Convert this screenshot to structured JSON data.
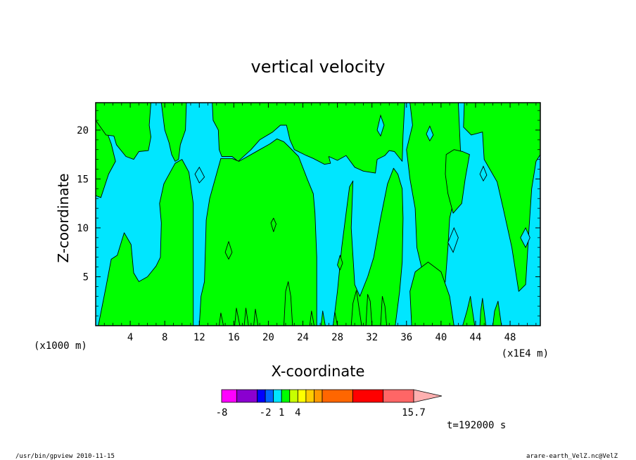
{
  "chart_data": {
    "type": "heatmap",
    "title": "vertical velocity",
    "xlabel": "X-coordinate",
    "ylabel": "Z-coordinate",
    "x_unit": "(x1E4 m)",
    "y_unit": "(x1000 m)",
    "xlim": [
      0,
      51.5
    ],
    "ylim": [
      0,
      22.8
    ],
    "x_ticks": [
      4,
      8,
      12,
      16,
      20,
      24,
      28,
      32,
      36,
      40,
      44,
      48
    ],
    "y_ticks": [
      5,
      10,
      15,
      20
    ],
    "background_color": "#00e6ff",
    "region_color": "#00ff00",
    "positive_regions": [
      {
        "id": "r1",
        "points": [
          [
            0,
            22.8
          ],
          [
            0,
            13.3
          ],
          [
            0.6,
            13.1
          ],
          [
            1.5,
            15.5
          ],
          [
            2.3,
            16.8
          ],
          [
            1.8,
            18.6
          ],
          [
            1.0,
            20.5
          ],
          [
            0.8,
            22.8
          ]
        ]
      },
      {
        "id": "r2",
        "points": [
          [
            0,
            22.8
          ],
          [
            0,
            21.0
          ],
          [
            1.2,
            19.5
          ],
          [
            2.1,
            19.4
          ],
          [
            2.4,
            18.5
          ],
          [
            3.5,
            17.3
          ],
          [
            4.4,
            17.0
          ],
          [
            5.0,
            17.8
          ],
          [
            6.1,
            17.9
          ],
          [
            6.4,
            19.3
          ],
          [
            6.2,
            20.5
          ],
          [
            6.4,
            22.8
          ]
        ]
      },
      {
        "id": "r3",
        "points": [
          [
            7.6,
            22.8
          ],
          [
            8.0,
            20.0
          ],
          [
            8.5,
            18.7
          ],
          [
            8.8,
            17.5
          ],
          [
            9.2,
            16.8
          ],
          [
            9.6,
            17.0
          ],
          [
            9.8,
            18.5
          ],
          [
            10.4,
            20.0
          ],
          [
            10.5,
            22.8
          ]
        ]
      },
      {
        "id": "r4",
        "points": [
          [
            13.5,
            22.8
          ],
          [
            13.6,
            21.0
          ],
          [
            14.2,
            20.0
          ],
          [
            14.3,
            18.0
          ],
          [
            14.6,
            17.3
          ],
          [
            15.8,
            17.3
          ],
          [
            16.5,
            16.8
          ],
          [
            18.0,
            18.0
          ],
          [
            19.0,
            19.0
          ],
          [
            20.5,
            19.8
          ],
          [
            21.4,
            20.5
          ],
          [
            22.1,
            20.5
          ],
          [
            22.5,
            19.0
          ],
          [
            23.0,
            18.0
          ],
          [
            24.4,
            17.4
          ],
          [
            25.2,
            17.1
          ],
          [
            26.5,
            16.5
          ],
          [
            27.2,
            16.6
          ],
          [
            27.0,
            17.3
          ],
          [
            28.0,
            16.9
          ],
          [
            29.0,
            17.4
          ],
          [
            30.0,
            16.2
          ],
          [
            31.0,
            15.8
          ],
          [
            32.4,
            15.6
          ],
          [
            32.6,
            17.0
          ],
          [
            33.5,
            17.4
          ],
          [
            34.0,
            17.9
          ],
          [
            34.6,
            17.8
          ],
          [
            35.5,
            16.8
          ],
          [
            35.6,
            19.5
          ],
          [
            35.8,
            22.8
          ]
        ]
      },
      {
        "id": "r5",
        "points": [
          [
            0.3,
            0
          ],
          [
            1.2,
            4.0
          ],
          [
            1.8,
            6.8
          ],
          [
            2.5,
            7.2
          ],
          [
            3.3,
            9.5
          ],
          [
            4.1,
            8.3
          ],
          [
            4.4,
            5.4
          ],
          [
            5.0,
            4.5
          ],
          [
            6.0,
            5.0
          ],
          [
            7.0,
            6.1
          ],
          [
            7.5,
            7.0
          ],
          [
            7.6,
            10.5
          ],
          [
            7.4,
            12.5
          ],
          [
            7.9,
            14.5
          ],
          [
            8.2,
            15.0
          ],
          [
            9.2,
            16.6
          ],
          [
            10.0,
            17.0
          ],
          [
            10.8,
            15.7
          ],
          [
            11.3,
            12.5
          ],
          [
            11.3,
            0
          ]
        ]
      },
      {
        "id": "r6",
        "points": [
          [
            12.0,
            0
          ],
          [
            12.2,
            3.0
          ],
          [
            12.6,
            4.5
          ],
          [
            12.8,
            10.8
          ],
          [
            13.2,
            13.0
          ],
          [
            14.5,
            17.1
          ],
          [
            15.8,
            17.1
          ],
          [
            16.6,
            16.8
          ],
          [
            18.0,
            17.5
          ],
          [
            19.0,
            18.0
          ],
          [
            20.2,
            18.6
          ],
          [
            21.0,
            19.1
          ],
          [
            21.8,
            18.8
          ],
          [
            22.5,
            18.2
          ],
          [
            23.5,
            17.3
          ],
          [
            24.5,
            15.0
          ],
          [
            25.2,
            13.5
          ],
          [
            25.4,
            11.5
          ],
          [
            25.6,
            7.0
          ],
          [
            25.6,
            0
          ]
        ]
      },
      {
        "id": "r7",
        "points": [
          [
            27.5,
            0
          ],
          [
            28.0,
            3.5
          ],
          [
            28.5,
            8.0
          ],
          [
            29.0,
            11.5
          ],
          [
            29.4,
            14.2
          ],
          [
            29.8,
            14.8
          ],
          [
            29.6,
            10.0
          ],
          [
            30.0,
            4.2
          ],
          [
            30.6,
            3.0
          ],
          [
            31.5,
            5.0
          ],
          [
            32.2,
            7.0
          ],
          [
            33.0,
            11.0
          ],
          [
            33.8,
            14.5
          ],
          [
            34.5,
            16.1
          ],
          [
            35.0,
            15.5
          ],
          [
            35.5,
            14.0
          ],
          [
            35.6,
            11.0
          ],
          [
            35.5,
            6.5
          ],
          [
            35.2,
            3.5
          ],
          [
            34.7,
            0
          ]
        ]
      },
      {
        "id": "r8",
        "points": [
          [
            36.4,
            22.8
          ],
          [
            36.7,
            20.5
          ],
          [
            36.0,
            18.0
          ],
          [
            36.4,
            15.0
          ],
          [
            37.0,
            12.0
          ],
          [
            37.2,
            8.0
          ],
          [
            38.0,
            5.0
          ],
          [
            39.8,
            3.5
          ],
          [
            40.5,
            4.5
          ],
          [
            40.8,
            8.0
          ],
          [
            41.0,
            11.0
          ],
          [
            41.8,
            14.0
          ],
          [
            42.3,
            17.0
          ],
          [
            42.0,
            22.8
          ]
        ]
      },
      {
        "id": "r9",
        "points": [
          [
            42.7,
            22.8
          ],
          [
            42.6,
            20.3
          ],
          [
            43.5,
            19.5
          ],
          [
            44.8,
            19.8
          ],
          [
            45.0,
            17.0
          ],
          [
            46.5,
            14.7
          ],
          [
            47.2,
            12.0
          ],
          [
            48.2,
            8.0
          ],
          [
            49.0,
            3.5
          ],
          [
            49.8,
            4.2
          ],
          [
            50.2,
            10.0
          ],
          [
            50.5,
            14.0
          ],
          [
            51.0,
            16.8
          ],
          [
            51.5,
            17.5
          ],
          [
            51.5,
            22.8
          ]
        ]
      },
      {
        "id": "r10",
        "points": [
          [
            40.6,
            17.5
          ],
          [
            41.5,
            18.0
          ],
          [
            42.5,
            17.8
          ],
          [
            43.3,
            17.5
          ],
          [
            42.8,
            15.0
          ],
          [
            42.4,
            12.5
          ],
          [
            41.4,
            11.5
          ],
          [
            40.8,
            13.5
          ],
          [
            40.5,
            15.5
          ]
        ]
      },
      {
        "id": "r11",
        "points": [
          [
            36.6,
            0
          ],
          [
            36.4,
            3.5
          ],
          [
            37.0,
            5.5
          ],
          [
            38.5,
            6.5
          ],
          [
            40.0,
            5.5
          ],
          [
            41.0,
            3.0
          ],
          [
            41.5,
            0
          ]
        ]
      },
      {
        "id": "r12",
        "points": [
          [
            42.5,
            0
          ],
          [
            43.0,
            1.5
          ],
          [
            43.4,
            3.0
          ],
          [
            43.9,
            0
          ]
        ]
      },
      {
        "id": "r13",
        "points": [
          [
            44.5,
            0
          ],
          [
            44.6,
            1.5
          ],
          [
            44.8,
            2.8
          ],
          [
            45.2,
            0
          ]
        ]
      },
      {
        "id": "r14",
        "points": [
          [
            46.0,
            0
          ],
          [
            46.2,
            1.5
          ],
          [
            46.6,
            2.5
          ],
          [
            47.0,
            0
          ]
        ]
      },
      {
        "id": "r15",
        "points": [
          [
            14.3,
            0
          ],
          [
            14.5,
            1.3
          ],
          [
            14.8,
            0
          ]
        ]
      },
      {
        "id": "r16",
        "points": [
          [
            16.1,
            0
          ],
          [
            16.3,
            1.8
          ],
          [
            16.7,
            0
          ]
        ]
      },
      {
        "id": "r17",
        "points": [
          [
            17.2,
            0
          ],
          [
            17.4,
            1.8
          ],
          [
            17.7,
            0
          ]
        ]
      },
      {
        "id": "r18",
        "points": [
          [
            18.3,
            0
          ],
          [
            18.5,
            1.7
          ],
          [
            18.8,
            0
          ]
        ]
      },
      {
        "id": "r19",
        "points": [
          [
            21.8,
            0
          ],
          [
            22.0,
            3.5
          ],
          [
            22.3,
            4.5
          ],
          [
            22.6,
            3.0
          ],
          [
            22.8,
            0
          ]
        ]
      },
      {
        "id": "r20",
        "points": [
          [
            24.8,
            0
          ],
          [
            25.0,
            1.5
          ],
          [
            25.3,
            0
          ]
        ]
      },
      {
        "id": "r21",
        "points": [
          [
            26.1,
            0
          ],
          [
            26.3,
            1.5
          ],
          [
            26.6,
            0
          ]
        ]
      },
      {
        "id": "r22",
        "points": [
          [
            27.5,
            0
          ],
          [
            27.7,
            1.4
          ],
          [
            28.0,
            0
          ]
        ]
      },
      {
        "id": "r23",
        "points": [
          [
            29.6,
            0
          ],
          [
            29.8,
            2.3
          ],
          [
            30.2,
            3.6
          ],
          [
            30.5,
            1.8
          ],
          [
            30.8,
            0
          ]
        ]
      },
      {
        "id": "r24",
        "points": [
          [
            31.3,
            0
          ],
          [
            31.5,
            3.2
          ],
          [
            31.8,
            2.5
          ],
          [
            32.0,
            0
          ]
        ]
      },
      {
        "id": "r25",
        "points": [
          [
            33.0,
            0
          ],
          [
            33.2,
            3.0
          ],
          [
            33.5,
            2.0
          ],
          [
            33.7,
            0
          ]
        ]
      },
      {
        "id": "r26",
        "points": [
          [
            20.3,
            10.5
          ],
          [
            20.6,
            11.0
          ],
          [
            20.9,
            10.4
          ],
          [
            20.6,
            9.6
          ]
        ]
      },
      {
        "id": "r27",
        "points": [
          [
            28.0,
            6.2
          ],
          [
            28.3,
            7.2
          ],
          [
            28.6,
            6.4
          ],
          [
            28.3,
            5.7
          ]
        ]
      },
      {
        "id": "r28",
        "points": [
          [
            15.0,
            7.5
          ],
          [
            15.4,
            8.6
          ],
          [
            15.8,
            7.5
          ],
          [
            15.4,
            6.8
          ]
        ]
      }
    ],
    "background_islands": [
      {
        "id": "b1",
        "points": [
          [
            40.8,
            8.5
          ],
          [
            41.5,
            10.0
          ],
          [
            42.0,
            9.0
          ],
          [
            41.4,
            7.5
          ]
        ]
      },
      {
        "id": "b2",
        "points": [
          [
            49.2,
            9.0
          ],
          [
            49.8,
            10.0
          ],
          [
            50.3,
            9.0
          ],
          [
            49.8,
            8.0
          ]
        ]
      },
      {
        "id": "b3",
        "points": [
          [
            11.5,
            15.5
          ],
          [
            12.0,
            16.2
          ],
          [
            12.6,
            15.2
          ],
          [
            12.0,
            14.6
          ]
        ]
      },
      {
        "id": "b4",
        "points": [
          [
            44.5,
            15.5
          ],
          [
            44.9,
            16.3
          ],
          [
            45.3,
            15.4
          ],
          [
            44.9,
            14.8
          ]
        ]
      },
      {
        "id": "b5",
        "points": [
          [
            32.6,
            20.0
          ],
          [
            33.0,
            21.5
          ],
          [
            33.4,
            20.5
          ],
          [
            33.0,
            19.4
          ]
        ]
      },
      {
        "id": "b6",
        "points": [
          [
            38.3,
            19.6
          ],
          [
            38.7,
            20.4
          ],
          [
            39.1,
            19.5
          ],
          [
            38.7,
            18.9
          ]
        ]
      }
    ],
    "colorbar": {
      "colors": [
        "#ff00ff",
        "#8a00d0",
        "#0000ff",
        "#0066ff",
        "#00e6ff",
        "#00ff00",
        "#c8ff00",
        "#ffff00",
        "#ffcc00",
        "#ff9900",
        "#ff6600",
        "#ff0000",
        "#ff6666",
        "#ffb0b0"
      ],
      "labels": [
        "-8",
        "-2",
        "1",
        "4",
        "15.7"
      ],
      "label_positions": [
        0,
        3,
        5,
        7,
        13
      ]
    },
    "time_label": "t=192000 s"
  },
  "footer": {
    "left": "/usr/bin/gpview   2010-11-15",
    "right": "arare-earth_VelZ.nc@VelZ"
  }
}
